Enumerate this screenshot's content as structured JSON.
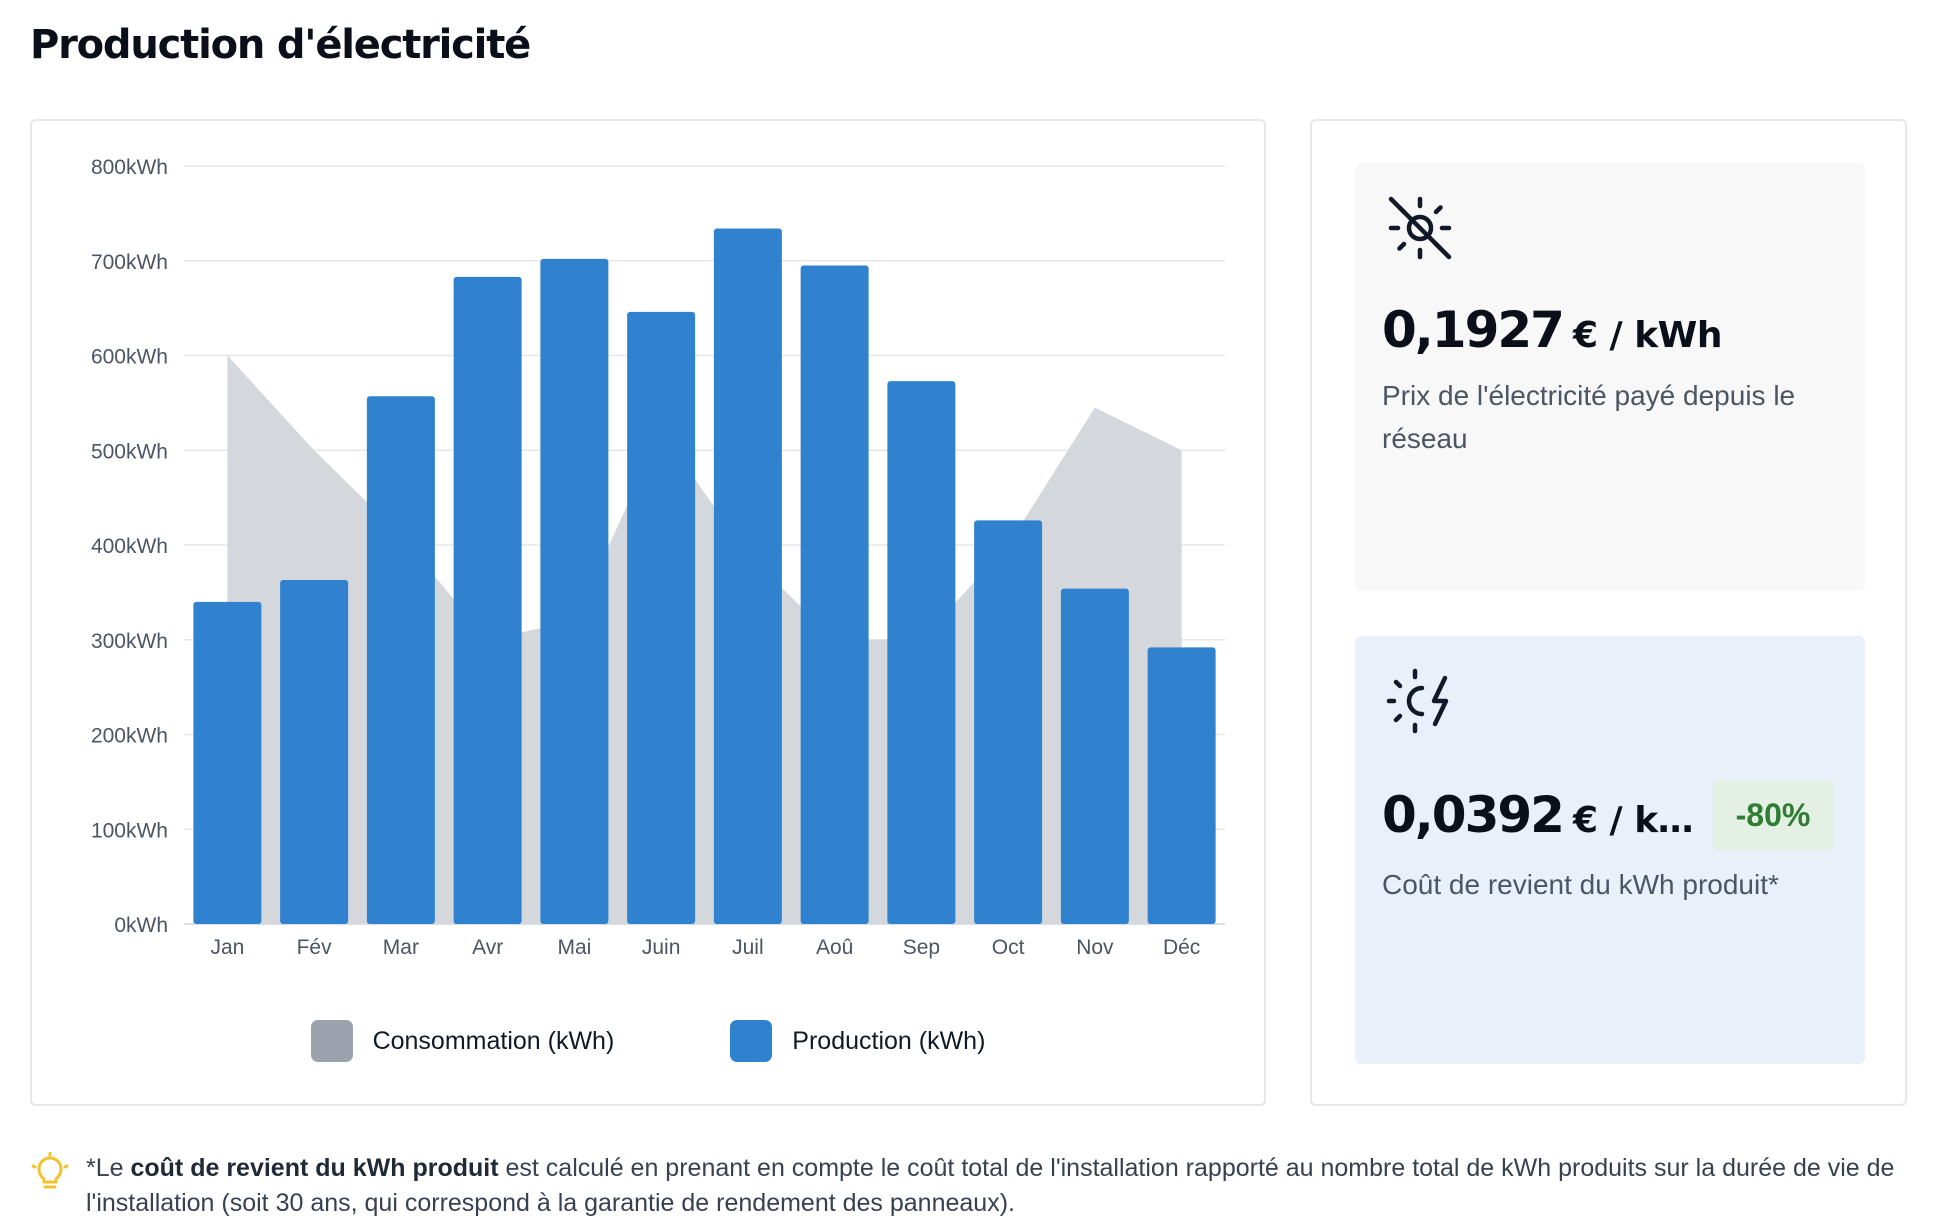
{
  "page": {
    "title": "Production d'électricité"
  },
  "chart_data": {
    "type": "bar",
    "categories": [
      "Jan",
      "Fév",
      "Mar",
      "Avr",
      "Mai",
      "Juin",
      "Juil",
      "Aoû",
      "Sep",
      "Oct",
      "Nov",
      "Déc"
    ],
    "series": [
      {
        "name": "Consommation (kWh)",
        "type": "area",
        "color": "#9ca3af",
        "values": [
          600,
          500,
          410,
          300,
          320,
          520,
          390,
          300,
          300,
          400,
          545,
          500
        ]
      },
      {
        "name": "Production (kWh)",
        "type": "bar",
        "color": "#3182ce",
        "values": [
          340,
          363,
          557,
          683,
          702,
          646,
          734,
          695,
          573,
          426,
          354,
          292
        ]
      }
    ],
    "y_ticks": [
      "0kWh",
      "100kWh",
      "200kWh",
      "300kWh",
      "400kWh",
      "500kWh",
      "600kWh",
      "700kWh",
      "800kWh"
    ],
    "ylim": [
      0,
      800
    ],
    "grid": true,
    "legend_position": "bottom"
  },
  "stats": {
    "grid_price": {
      "icon": "sun-off-icon",
      "value": "0,1927",
      "unit": "€ / kWh",
      "label": "Prix de l'électricité payé depuis le réseau"
    },
    "solar_cost": {
      "icon": "solar-bolt-icon",
      "value": "0,0392",
      "unit": "€ / k…",
      "badge": "-80%",
      "label": "Coût de revient du kWh produit*"
    }
  },
  "footnote": {
    "icon": "lightbulb-icon",
    "prefix": "*Le ",
    "bold": "coût de revient du kWh produit",
    "rest": " est calculé en prenant en compte le coût total de l'installation rapporté au nombre total de kWh produits sur la durée de vie de l'installation (soit 30 ans, qui correspond à la garantie de rendement des panneaux)."
  },
  "colors": {
    "production": "#3182ce",
    "consumption_area": "#d4d7dc",
    "consumption_legend": "#9ca3af",
    "badge_text": "#2e7d32",
    "badge_bg": "#e3f0e3"
  }
}
